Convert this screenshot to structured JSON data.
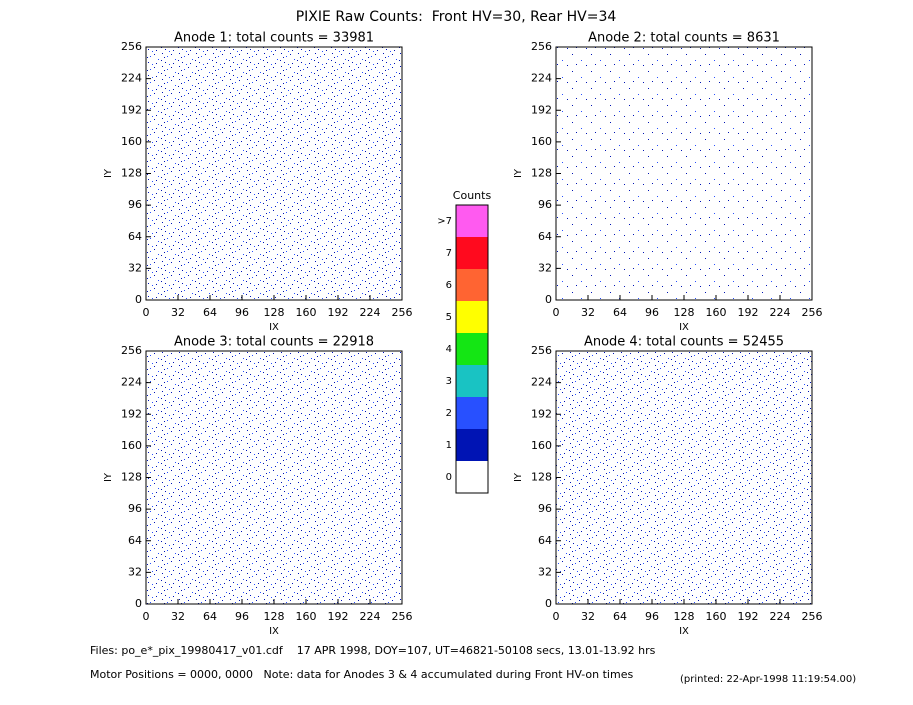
{
  "title": "PIXIE Raw Counts:  Front HV=30, Rear HV=34",
  "chart_data": [
    {
      "type": "heatmap",
      "title": "Anode 1: total counts = 33981",
      "x_label": "IX",
      "y_label": "IY",
      "xlim": [
        0,
        256
      ],
      "ylim": [
        0,
        256
      ],
      "xticks": [
        0,
        32,
        64,
        96,
        128,
        160,
        192,
        224,
        256
      ],
      "yticks": [
        0,
        32,
        64,
        96,
        128,
        160,
        192,
        224,
        256
      ]
    },
    {
      "type": "heatmap",
      "title": "Anode 2: total counts = 8631",
      "x_label": "IX",
      "y_label": "IY",
      "xlim": [
        0,
        256
      ],
      "ylim": [
        0,
        256
      ],
      "xticks": [
        0,
        32,
        64,
        96,
        128,
        160,
        192,
        224,
        256
      ],
      "yticks": [
        0,
        32,
        64,
        96,
        128,
        160,
        192,
        224,
        256
      ]
    },
    {
      "type": "heatmap",
      "title": "Anode 3: total counts = 22918",
      "x_label": "IX",
      "y_label": "IY",
      "xlim": [
        0,
        256
      ],
      "ylim": [
        0,
        256
      ],
      "xticks": [
        0,
        32,
        64,
        96,
        128,
        160,
        192,
        224,
        256
      ],
      "yticks": [
        0,
        32,
        64,
        96,
        128,
        160,
        192,
        224,
        256
      ]
    },
    {
      "type": "heatmap",
      "title": "Anode 4: total counts = 52455",
      "x_label": "IX",
      "y_label": "IY",
      "xlim": [
        0,
        256
      ],
      "ylim": [
        0,
        256
      ],
      "xticks": [
        0,
        32,
        64,
        96,
        128,
        160,
        192,
        224,
        256
      ],
      "yticks": [
        0,
        32,
        64,
        96,
        128,
        160,
        192,
        224,
        256
      ]
    }
  ],
  "colorbar": {
    "title": "Counts",
    "labels": [
      "0",
      "1",
      "2",
      "3",
      "4",
      "5",
      "6",
      "7",
      ">7"
    ],
    "colors": [
      "#ffffff",
      "#0014b4",
      "#2850ff",
      "#19c3c3",
      "#14e614",
      "#ffff00",
      "#ff6432",
      "#ff0a1e",
      "#ff5af0"
    ]
  },
  "footer": {
    "files": "Files: po_e*_pix_19980417_v01.cdf    17 APR 1998, DOY=107, UT=46821-50108 secs, 13.01-13.92 hrs",
    "motor": "Motor Positions = 0000, 0000   Note: data for Anodes 3 & 4 accumulated during Front HV-on times",
    "printed": "(printed: 22-Apr-1998 11:19:54.00)"
  }
}
